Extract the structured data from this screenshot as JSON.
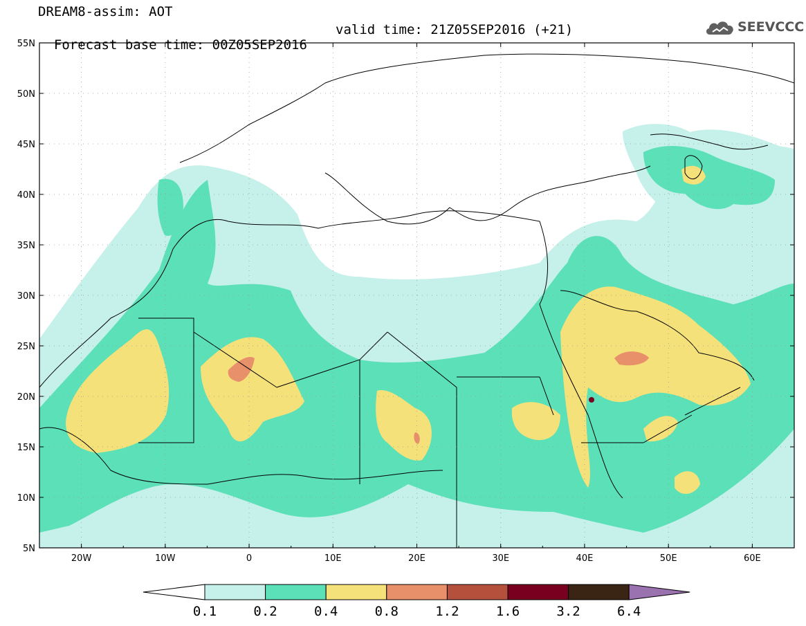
{
  "header": {
    "title": "DREAM8-assim: AOT",
    "base_time": "Forecast base time: 00Z05SEP2016",
    "valid_time": "valid time: 21Z05SEP2016 (+21)",
    "logo_text": "SEEVCCC"
  },
  "map": {
    "lat_labels": [
      "55N",
      "50N",
      "45N",
      "40N",
      "35N",
      "30N",
      "25N",
      "20N",
      "15N",
      "10N",
      "5N"
    ],
    "lon_labels": [
      "20W",
      "10W",
      "0",
      "10E",
      "20E",
      "30E",
      "40E",
      "50E",
      "60E"
    ],
    "lat_range": [
      5,
      55
    ],
    "lon_range": [
      -25,
      65
    ],
    "grid": "dotted"
  },
  "colorbar": {
    "levels": [
      "0.1",
      "0.2",
      "0.4",
      "0.8",
      "1.2",
      "1.6",
      "3.2",
      "6.4"
    ],
    "colors": [
      "#c6f0ea",
      "#5be0b8",
      "#f5e17a",
      "#e8906a",
      "#b5503c",
      "#7a0020",
      "#3a2414",
      "#9b72b0"
    ],
    "under_color": "#ffffff"
  }
}
